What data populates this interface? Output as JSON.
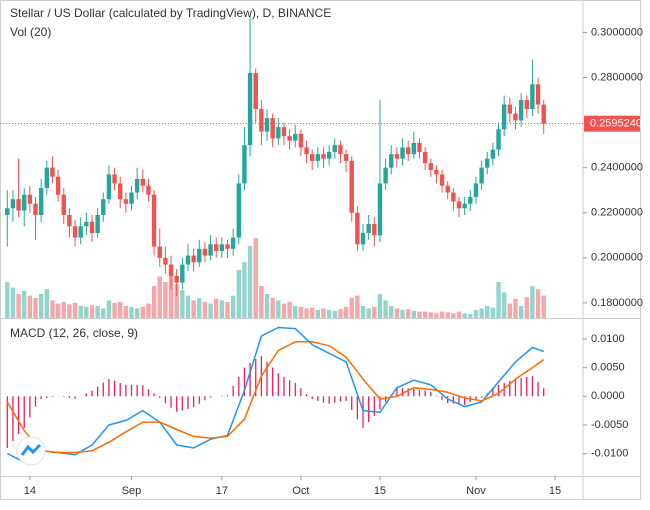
{
  "chart_data": {
    "type": "candlestick",
    "title": "Stellar / US Dollar (calculated by TradingView), D, BINANCE",
    "volume_label": "Vol (20)",
    "up_color": "#26a69a",
    "down_color": "#ef5350",
    "volume_up_color": "#93d5cd",
    "volume_down_color": "#f5a7aa",
    "xlim": [
      -1.29,
      101.96
    ],
    "xticks": [
      {
        "value": 4,
        "label": "14"
      },
      {
        "value": 22,
        "label": "Sep"
      },
      {
        "value": 38,
        "label": "17"
      },
      {
        "value": 52,
        "label": "Oct"
      },
      {
        "value": 66,
        "label": "15"
      },
      {
        "value": 83,
        "label": "Nov"
      },
      {
        "value": 97,
        "label": "15"
      }
    ],
    "ylim": [
      0.1733,
      0.3144
    ],
    "yticks": [
      {
        "value": 0.18,
        "label": "0.1800000"
      },
      {
        "value": 0.2,
        "label": "0.2000000"
      },
      {
        "value": 0.22,
        "label": "0.2200000"
      },
      {
        "value": 0.24,
        "label": "0.2400000"
      },
      {
        "value": 0.28,
        "label": "0.2800000"
      },
      {
        "value": 0.3,
        "label": "0.3000000"
      }
    ],
    "price_line": {
      "value": 0.259524,
      "label": "0.2595240",
      "color": "#ef5350"
    },
    "volume_lim": [
      0,
      100
    ],
    "ohlc": [
      [
        0.219,
        0.23,
        0.205,
        0.222
      ],
      [
        0.222,
        0.23,
        0.216,
        0.226
      ],
      [
        0.226,
        0.244,
        0.218,
        0.221
      ],
      [
        0.221,
        0.231,
        0.214,
        0.228
      ],
      [
        0.228,
        0.232,
        0.22,
        0.224
      ],
      [
        0.224,
        0.227,
        0.208,
        0.219
      ],
      [
        0.219,
        0.235,
        0.216,
        0.231
      ],
      [
        0.231,
        0.243,
        0.228,
        0.24
      ],
      [
        0.24,
        0.245,
        0.233,
        0.236
      ],
      [
        0.236,
        0.239,
        0.225,
        0.228
      ],
      [
        0.228,
        0.231,
        0.215,
        0.219
      ],
      [
        0.219,
        0.222,
        0.209,
        0.214
      ],
      [
        0.214,
        0.217,
        0.205,
        0.209
      ],
      [
        0.209,
        0.218,
        0.206,
        0.214
      ],
      [
        0.214,
        0.22,
        0.21,
        0.216
      ],
      [
        0.216,
        0.219,
        0.207,
        0.211
      ],
      [
        0.211,
        0.222,
        0.209,
        0.219
      ],
      [
        0.219,
        0.229,
        0.216,
        0.226
      ],
      [
        0.226,
        0.241,
        0.224,
        0.237
      ],
      [
        0.237,
        0.24,
        0.23,
        0.233
      ],
      [
        0.233,
        0.236,
        0.222,
        0.226
      ],
      [
        0.226,
        0.229,
        0.22,
        0.224
      ],
      [
        0.224,
        0.232,
        0.221,
        0.229
      ],
      [
        0.229,
        0.24,
        0.226,
        0.235
      ],
      [
        0.235,
        0.239,
        0.229,
        0.232
      ],
      [
        0.232,
        0.235,
        0.225,
        0.228
      ],
      [
        0.228,
        0.23,
        0.201,
        0.205
      ],
      [
        0.205,
        0.213,
        0.196,
        0.2
      ],
      [
        0.2,
        0.205,
        0.193,
        0.197
      ],
      [
        0.197,
        0.201,
        0.186,
        0.192
      ],
      [
        0.192,
        0.195,
        0.183,
        0.189
      ],
      [
        0.189,
        0.2,
        0.186,
        0.197
      ],
      [
        0.197,
        0.206,
        0.194,
        0.201
      ],
      [
        0.201,
        0.204,
        0.194,
        0.198
      ],
      [
        0.198,
        0.208,
        0.196,
        0.204
      ],
      [
        0.204,
        0.207,
        0.198,
        0.201
      ],
      [
        0.201,
        0.21,
        0.199,
        0.206
      ],
      [
        0.206,
        0.209,
        0.2,
        0.203
      ],
      [
        0.203,
        0.209,
        0.2,
        0.206
      ],
      [
        0.206,
        0.208,
        0.2,
        0.204
      ],
      [
        0.204,
        0.213,
        0.201,
        0.209
      ],
      [
        0.209,
        0.237,
        0.206,
        0.233
      ],
      [
        0.233,
        0.258,
        0.23,
        0.25
      ],
      [
        0.25,
        0.307,
        0.245,
        0.282
      ],
      [
        0.282,
        0.284,
        0.26,
        0.266
      ],
      [
        0.266,
        0.27,
        0.25,
        0.256
      ],
      [
        0.256,
        0.266,
        0.252,
        0.262
      ],
      [
        0.262,
        0.264,
        0.249,
        0.253
      ],
      [
        0.253,
        0.262,
        0.25,
        0.258
      ],
      [
        0.258,
        0.26,
        0.25,
        0.254
      ],
      [
        0.254,
        0.257,
        0.248,
        0.252
      ],
      [
        0.252,
        0.259,
        0.249,
        0.255
      ],
      [
        0.255,
        0.257,
        0.245,
        0.249
      ],
      [
        0.249,
        0.252,
        0.242,
        0.246
      ],
      [
        0.246,
        0.248,
        0.239,
        0.243
      ],
      [
        0.243,
        0.249,
        0.24,
        0.246
      ],
      [
        0.246,
        0.249,
        0.24,
        0.244
      ],
      [
        0.244,
        0.25,
        0.241,
        0.247
      ],
      [
        0.247,
        0.253,
        0.244,
        0.25
      ],
      [
        0.25,
        0.252,
        0.242,
        0.246
      ],
      [
        0.246,
        0.248,
        0.238,
        0.243
      ],
      [
        0.243,
        0.245,
        0.216,
        0.22
      ],
      [
        0.22,
        0.223,
        0.203,
        0.206
      ],
      [
        0.206,
        0.215,
        0.203,
        0.211
      ],
      [
        0.211,
        0.219,
        0.208,
        0.215
      ],
      [
        0.215,
        0.218,
        0.205,
        0.21
      ],
      [
        0.21,
        0.27,
        0.207,
        0.233
      ],
      [
        0.233,
        0.244,
        0.23,
        0.24
      ],
      [
        0.24,
        0.25,
        0.237,
        0.246
      ],
      [
        0.246,
        0.249,
        0.24,
        0.244
      ],
      [
        0.244,
        0.253,
        0.241,
        0.249
      ],
      [
        0.249,
        0.252,
        0.243,
        0.246
      ],
      [
        0.246,
        0.256,
        0.244,
        0.251
      ],
      [
        0.251,
        0.253,
        0.244,
        0.247
      ],
      [
        0.247,
        0.249,
        0.239,
        0.242
      ],
      [
        0.242,
        0.244,
        0.236,
        0.239
      ],
      [
        0.239,
        0.241,
        0.233,
        0.237
      ],
      [
        0.237,
        0.239,
        0.229,
        0.232
      ],
      [
        0.232,
        0.234,
        0.226,
        0.229
      ],
      [
        0.229,
        0.231,
        0.221,
        0.225
      ],
      [
        0.225,
        0.227,
        0.218,
        0.222
      ],
      [
        0.222,
        0.227,
        0.219,
        0.224
      ],
      [
        0.224,
        0.23,
        0.221,
        0.227
      ],
      [
        0.227,
        0.236,
        0.224,
        0.233
      ],
      [
        0.233,
        0.243,
        0.23,
        0.24
      ],
      [
        0.24,
        0.247,
        0.237,
        0.244
      ],
      [
        0.244,
        0.251,
        0.241,
        0.248
      ],
      [
        0.248,
        0.26,
        0.245,
        0.257
      ],
      [
        0.257,
        0.272,
        0.254,
        0.268
      ],
      [
        0.268,
        0.271,
        0.26,
        0.264
      ],
      [
        0.264,
        0.267,
        0.257,
        0.261
      ],
      [
        0.261,
        0.273,
        0.258,
        0.27
      ],
      [
        0.27,
        0.272,
        0.262,
        0.266
      ],
      [
        0.266,
        0.288,
        0.263,
        0.277
      ],
      [
        0.277,
        0.28,
        0.264,
        0.268
      ],
      [
        0.268,
        0.27,
        0.255,
        0.259524
      ]
    ],
    "volume": [
      45,
      38,
      30,
      34,
      28,
      25,
      30,
      36,
      22,
      18,
      20,
      17,
      19,
      15,
      14,
      16,
      15,
      12,
      22,
      19,
      20,
      15,
      14,
      12,
      14,
      18,
      40,
      52,
      45,
      55,
      42,
      35,
      28,
      22,
      25,
      20,
      18,
      24,
      22,
      20,
      28,
      60,
      70,
      90,
      100,
      40,
      30,
      25,
      22,
      18,
      20,
      15,
      14,
      12,
      13,
      10,
      12,
      10,
      9,
      11,
      14,
      25,
      28,
      15,
      12,
      14,
      30,
      22,
      15,
      12,
      10,
      11,
      9,
      8,
      8,
      7,
      6,
      8,
      7,
      6,
      8,
      6,
      5,
      10,
      12,
      15,
      13,
      45,
      32,
      18,
      24,
      15,
      26,
      40,
      36,
      28
    ],
    "macd": {
      "title": "MACD (12, 26, close, 9)",
      "ylim": [
        -0.0139,
        0.0133
      ],
      "yticks": [
        {
          "value": -0.01,
          "label": "-0.0100"
        },
        {
          "value": -0.005,
          "label": "-0.0050"
        },
        {
          "value": 0,
          "label": "0.0000"
        },
        {
          "value": 0.005,
          "label": "0.0050"
        },
        {
          "value": 0.01,
          "label": "0.0100"
        }
      ],
      "x": [
        0,
        3,
        6,
        9,
        12,
        15,
        18,
        21,
        24,
        27,
        30,
        33,
        36,
        39,
        42,
        45,
        48,
        51,
        54,
        57,
        60,
        63,
        66,
        69,
        72,
        75,
        78,
        81,
        84,
        87,
        90,
        93,
        95
      ],
      "series": [
        {
          "color": "#2196f3",
          "values": [
            -0.01,
            -0.0115,
            -0.0095,
            -0.0098,
            -0.0102,
            -0.0085,
            -0.005,
            -0.0042,
            -0.0025,
            -0.0045,
            -0.0085,
            -0.009,
            -0.0075,
            -0.0068,
            0.001,
            0.0105,
            0.012,
            0.0118,
            0.009,
            0.0075,
            0.006,
            -0.0025,
            -0.0028,
            0.0015,
            0.0028,
            0.002,
            -0.0005,
            -0.0018,
            -0.001,
            0.0025,
            0.006,
            0.0085,
            0.0078
          ]
        },
        {
          "color": "#ff6d00",
          "values": [
            -0.001,
            -0.006,
            -0.0095,
            -0.0098,
            -0.0098,
            -0.0095,
            -0.008,
            -0.0062,
            -0.0045,
            -0.0045,
            -0.0058,
            -0.007,
            -0.0073,
            -0.007,
            -0.004,
            0.0035,
            0.008,
            0.0095,
            0.0095,
            0.0088,
            0.0068,
            0.003,
            -0.0005,
            0.0,
            0.0015,
            0.0012,
            0.0007,
            -0.0003,
            -0.0008,
            0.0005,
            0.003,
            0.005,
            0.0064
          ]
        }
      ],
      "histogram_color": "#e91e63",
      "histogram": [
        -0.009,
        -0.0078,
        -0.0066,
        -0.0055,
        -0.0037,
        -0.0018,
        -0.0005,
        -0.0003,
        -0.0001,
        0.0,
        -0.0001,
        -0.0003,
        -0.0004,
        0.0,
        0.0005,
        0.001,
        0.0017,
        0.0024,
        0.003,
        0.0027,
        0.0023,
        0.002,
        0.002,
        0.002,
        0.0019,
        0.0012,
        0.0005,
        -0.0003,
        -0.0012,
        -0.002,
        -0.0027,
        -0.0025,
        -0.0022,
        -0.0019,
        -0.0013,
        -0.0007,
        -0.0002,
        0.0,
        0.0001,
        0.0002,
        0.0018,
        0.0034,
        0.005,
        0.0058,
        0.0065,
        0.007,
        0.006,
        0.005,
        0.004,
        0.0034,
        0.0028,
        0.0023,
        0.0014,
        0.0004,
        -0.0005,
        -0.0008,
        -0.0011,
        -0.0013,
        -0.0011,
        -0.0009,
        -0.0008,
        -0.0024,
        -0.004,
        -0.0055,
        -0.0045,
        -0.0034,
        -0.0023,
        -0.001,
        0.0003,
        0.0015,
        0.0014,
        0.0014,
        0.0013,
        0.0011,
        0.001,
        0.0008,
        0.0001,
        -0.0006,
        -0.0012,
        -0.0013,
        -0.0014,
        -0.0015,
        -0.001,
        -0.0006,
        -0.0002,
        0.0005,
        0.0013,
        0.002,
        0.0023,
        0.0027,
        0.003,
        0.0032,
        0.0034,
        0.0035,
        0.0025,
        0.0014
      ]
    }
  }
}
